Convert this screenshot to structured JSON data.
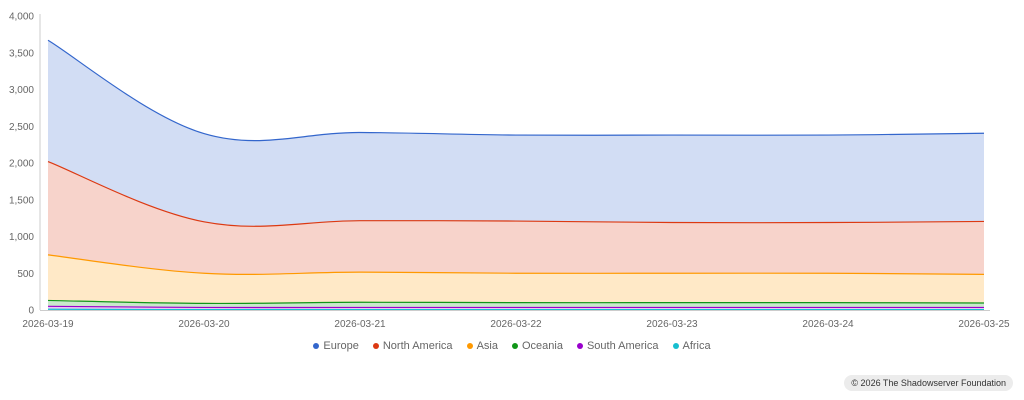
{
  "chart_data": {
    "type": "area",
    "stacked": true,
    "x": [
      "2026-03-19",
      "2026-03-20",
      "2026-03-21",
      "2026-03-22",
      "2026-03-23",
      "2026-03-24",
      "2026-03-25"
    ],
    "xlabel": "",
    "ylabel": "",
    "ylim": [
      0,
      4000
    ],
    "yticks": [
      "0",
      "500",
      "1,000",
      "1,500",
      "2,000",
      "2,500",
      "3,000",
      "3,500",
      "4,000"
    ],
    "grid": false,
    "legend_position": "bottom",
    "series": [
      {
        "name": "Africa",
        "color": "#17becf",
        "values": [
          10,
          5,
          5,
          5,
          5,
          5,
          5
        ]
      },
      {
        "name": "South America",
        "color": "#9900cc",
        "values": [
          40,
          30,
          30,
          30,
          30,
          30,
          30
        ]
      },
      {
        "name": "Oceania",
        "color": "#109618",
        "values": [
          80,
          55,
          70,
          65,
          65,
          65,
          60
        ]
      },
      {
        "name": "Asia",
        "color": "#ff9900",
        "values": [
          620,
          410,
          410,
          400,
          400,
          400,
          390
        ]
      },
      {
        "name": "North America",
        "color": "#dc3912",
        "values": [
          1270,
          700,
          700,
          710,
          690,
          690,
          720
        ]
      },
      {
        "name": "Europe",
        "color": "#3366cc",
        "values": [
          1650,
          1200,
          1200,
          1170,
          1190,
          1190,
          1200
        ]
      }
    ],
    "legend_order": [
      "Europe",
      "North America",
      "Asia",
      "Oceania",
      "South America",
      "Africa"
    ]
  },
  "credit": "© 2026 The Shadowserver Foundation"
}
